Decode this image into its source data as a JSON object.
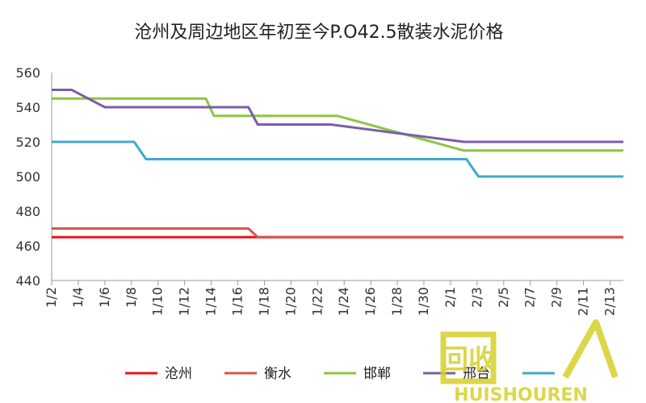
{
  "chart_data": {
    "type": "line",
    "title": "沧州及周边地区年初至今P.O42.5散装水泥价格",
    "xlabel": "",
    "ylabel": "",
    "ylim": [
      440,
      560
    ],
    "yticks": [
      440,
      460,
      480,
      500,
      520,
      540,
      560
    ],
    "xlim": [
      1,
      44
    ],
    "xticks": [
      {
        "day": 1,
        "label": "1/2"
      },
      {
        "day": 3,
        "label": "1/4"
      },
      {
        "day": 5,
        "label": "1/6"
      },
      {
        "day": 7,
        "label": "1/8"
      },
      {
        "day": 9,
        "label": "1/10"
      },
      {
        "day": 11,
        "label": "1/12"
      },
      {
        "day": 13,
        "label": "1/14"
      },
      {
        "day": 15,
        "label": "1/16"
      },
      {
        "day": 17,
        "label": "1/18"
      },
      {
        "day": 19,
        "label": "1/20"
      },
      {
        "day": 21,
        "label": "1/22"
      },
      {
        "day": 23,
        "label": "1/24"
      },
      {
        "day": 25,
        "label": "1/26"
      },
      {
        "day": 27,
        "label": "1/28"
      },
      {
        "day": 29,
        "label": "1/30"
      },
      {
        "day": 31,
        "label": "2/1"
      },
      {
        "day": 33,
        "label": "2/3"
      },
      {
        "day": 35,
        "label": "2/5"
      },
      {
        "day": 37,
        "label": "2/7"
      },
      {
        "day": 39,
        "label": "2/9"
      },
      {
        "day": 41,
        "label": "2/11"
      },
      {
        "day": 43,
        "label": "2/13"
      }
    ],
    "grid": false,
    "legend_position": "bottom",
    "series": [
      {
        "name": "沧州",
        "color": "#e8141b",
        "points": [
          [
            1,
            465
          ],
          [
            44,
            465
          ]
        ]
      },
      {
        "name": "衡水",
        "color": "#d9534f",
        "points": [
          [
            1,
            470
          ],
          [
            15.8,
            470
          ],
          [
            16.5,
            465
          ],
          [
            44,
            465
          ]
        ]
      },
      {
        "name": "邯郸",
        "color": "#8dc63f",
        "points": [
          [
            1,
            545
          ],
          [
            12.6,
            545
          ],
          [
            13.2,
            535
          ],
          [
            22.5,
            535
          ],
          [
            32,
            515
          ],
          [
            44,
            515
          ]
        ]
      },
      {
        "name": "邢台",
        "color": "#7b5ea7",
        "points": [
          [
            1,
            550
          ],
          [
            2.5,
            550
          ],
          [
            5,
            540
          ],
          [
            15.8,
            540
          ],
          [
            16.5,
            530
          ],
          [
            22,
            530
          ],
          [
            32,
            520
          ],
          [
            44,
            520
          ]
        ]
      },
      {
        "name": "",
        "color": "#41aacc",
        "points": [
          [
            1,
            520
          ],
          [
            7.2,
            520
          ],
          [
            8.1,
            510
          ],
          [
            32.2,
            510
          ],
          [
            33.1,
            500
          ],
          [
            44,
            500
          ]
        ]
      }
    ]
  },
  "watermark": {
    "cn_text": "回收",
    "en_text": "HUISHOUREN",
    "color": "#d7d02b"
  }
}
